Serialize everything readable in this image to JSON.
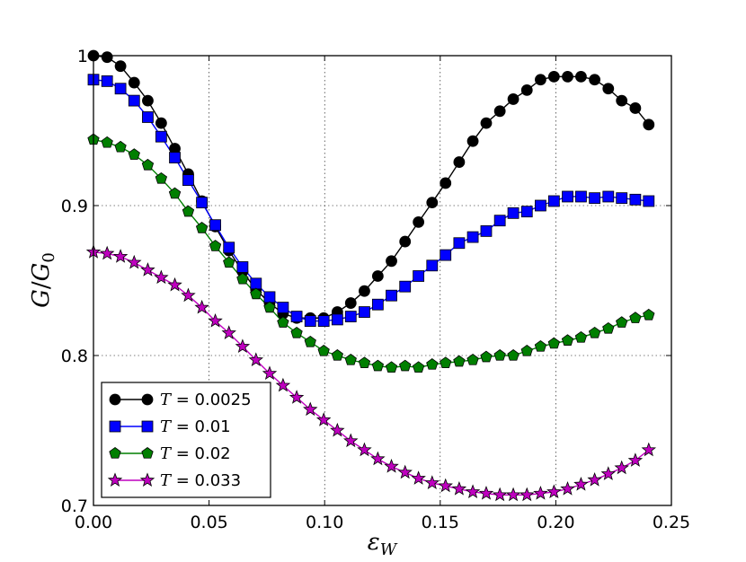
{
  "chart_data": {
    "type": "line",
    "title": "",
    "xlabel_var": "ε",
    "xlabel_sub": "W",
    "ylabel_var": "G",
    "ylabel_sep": "/",
    "ylabel_den": "G",
    "ylabel_den_sub": "0",
    "xlim": [
      0.0,
      0.25
    ],
    "ylim": [
      0.7,
      1.0
    ],
    "xticks": [
      0.0,
      0.05,
      0.1,
      0.15,
      0.2,
      0.25
    ],
    "xtick_labels": [
      "0.00",
      "0.05",
      "0.10",
      "0.15",
      "0.20",
      "0.25"
    ],
    "yticks": [
      0.7,
      0.8,
      0.9,
      1.0
    ],
    "ytick_labels": [
      "0.7",
      "0.8",
      "0.9",
      "1"
    ],
    "grid": true,
    "legend_location": "lower-left",
    "x": [
      0.0,
      0.0059,
      0.0117,
      0.0176,
      0.0235,
      0.0293,
      0.0352,
      0.041,
      0.0469,
      0.0527,
      0.0586,
      0.0645,
      0.0703,
      0.0762,
      0.082,
      0.0879,
      0.0938,
      0.0996,
      0.1055,
      0.1113,
      0.1172,
      0.123,
      0.1289,
      0.1348,
      0.1406,
      0.1465,
      0.1523,
      0.1582,
      0.1641,
      0.1699,
      0.1758,
      0.1816,
      0.1875,
      0.1934,
      0.1992,
      0.2051,
      0.2109,
      0.2168,
      0.2227,
      0.2285,
      0.2344,
      0.2402
    ],
    "series": [
      {
        "name": "T = 0.0025",
        "legend_var": "T",
        "legend_value": " = 0.0025",
        "color": "#000000",
        "marker": "circle",
        "values": [
          1.0,
          0.999,
          0.993,
          0.982,
          0.97,
          0.955,
          0.938,
          0.921,
          0.903,
          0.886,
          0.87,
          0.856,
          0.844,
          0.835,
          0.828,
          0.825,
          0.825,
          0.825,
          0.829,
          0.835,
          0.843,
          0.853,
          0.863,
          0.876,
          0.889,
          0.902,
          0.915,
          0.929,
          0.943,
          0.955,
          0.963,
          0.971,
          0.977,
          0.984,
          0.986,
          0.986,
          0.986,
          0.984,
          0.978,
          0.97,
          0.965,
          0.954
        ]
      },
      {
        "name": "T = 0.01",
        "legend_var": "T",
        "legend_value": " = 0.01",
        "color": "#0000ff",
        "marker": "square",
        "values": [
          0.984,
          0.983,
          0.978,
          0.97,
          0.959,
          0.946,
          0.932,
          0.917,
          0.902,
          0.887,
          0.872,
          0.859,
          0.848,
          0.839,
          0.832,
          0.826,
          0.823,
          0.823,
          0.824,
          0.826,
          0.829,
          0.834,
          0.84,
          0.846,
          0.853,
          0.86,
          0.867,
          0.875,
          0.879,
          0.883,
          0.89,
          0.895,
          0.896,
          0.9,
          0.903,
          0.906,
          0.906,
          0.905,
          0.906,
          0.905,
          0.904,
          0.903
        ]
      },
      {
        "name": "T = 0.02",
        "legend_var": "T",
        "legend_value": " = 0.02",
        "color": "#007f00",
        "marker": "pentagon",
        "values": [
          0.944,
          0.942,
          0.939,
          0.934,
          0.927,
          0.918,
          0.908,
          0.896,
          0.885,
          0.873,
          0.862,
          0.851,
          0.841,
          0.832,
          0.822,
          0.815,
          0.809,
          0.803,
          0.8,
          0.797,
          0.795,
          0.793,
          0.792,
          0.793,
          0.792,
          0.794,
          0.795,
          0.796,
          0.797,
          0.799,
          0.8,
          0.8,
          0.803,
          0.806,
          0.808,
          0.81,
          0.812,
          0.815,
          0.818,
          0.822,
          0.825,
          0.827
        ]
      },
      {
        "name": "T = 0.033",
        "legend_var": "T",
        "legend_value": " = 0.033",
        "color": "#bf00bf",
        "marker": "star",
        "values": [
          0.869,
          0.868,
          0.866,
          0.862,
          0.857,
          0.852,
          0.847,
          0.84,
          0.832,
          0.823,
          0.815,
          0.806,
          0.797,
          0.788,
          0.78,
          0.772,
          0.764,
          0.757,
          0.75,
          0.743,
          0.737,
          0.731,
          0.726,
          0.722,
          0.718,
          0.715,
          0.713,
          0.711,
          0.709,
          0.708,
          0.707,
          0.707,
          0.707,
          0.708,
          0.709,
          0.711,
          0.714,
          0.717,
          0.721,
          0.725,
          0.73,
          0.737
        ]
      }
    ]
  }
}
